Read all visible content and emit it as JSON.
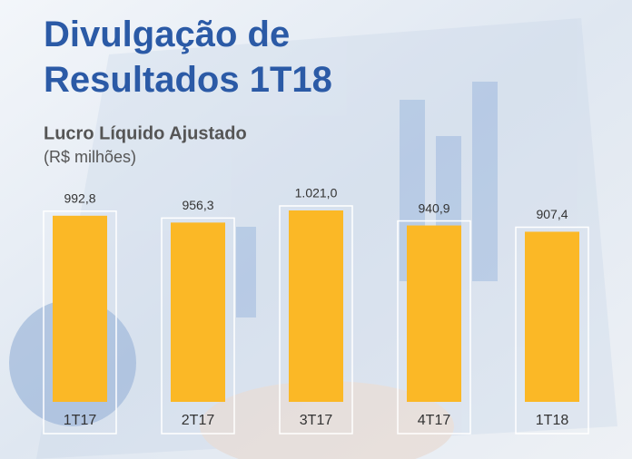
{
  "chart_data": {
    "type": "bar",
    "title": "Divulgação de Resultados 1T18",
    "subtitle": "Lucro Líquido Ajustado",
    "unit": "(R$ milhões)",
    "categories": [
      "1T17",
      "2T17",
      "3T17",
      "4T17",
      "1T18"
    ],
    "values": [
      992.8,
      956.3,
      1021.0,
      940.9,
      907.4
    ],
    "value_labels": [
      "992,8",
      "956,3",
      "1.021,0",
      "940,9",
      "907,4"
    ],
    "color": "#fbb826"
  }
}
